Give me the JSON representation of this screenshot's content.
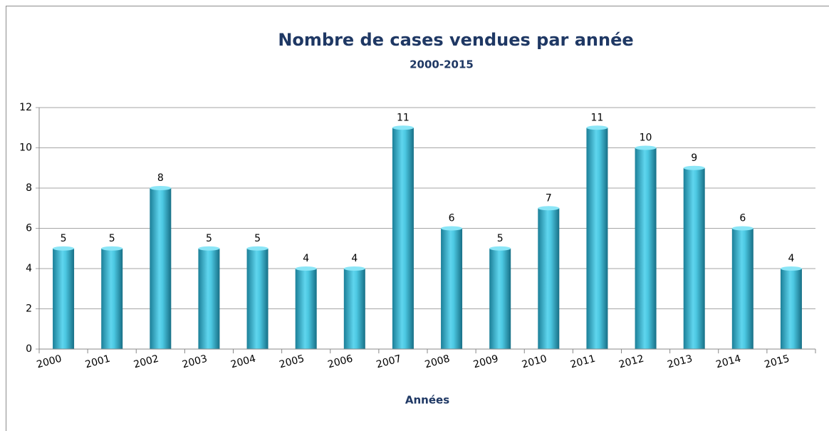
{
  "chart_data": {
    "type": "bar",
    "title": "Nombre de cases vendues par année",
    "subtitle": "2000-2015",
    "x_label": "Années",
    "categories": [
      "2000",
      "2001",
      "2002",
      "2003",
      "2004",
      "2005",
      "2006",
      "2007",
      "2008",
      "2009",
      "2010",
      "2011",
      "2012",
      "2013",
      "2014",
      "2015"
    ],
    "values": [
      5,
      5,
      8,
      5,
      5,
      4,
      4,
      11,
      6,
      5,
      7,
      11,
      10,
      9,
      6,
      4
    ],
    "color": "#3fbcd8",
    "ylim": [
      0,
      12
    ],
    "yticks": [
      0,
      2,
      4,
      6,
      8,
      10,
      12
    ],
    "grid": true
  }
}
